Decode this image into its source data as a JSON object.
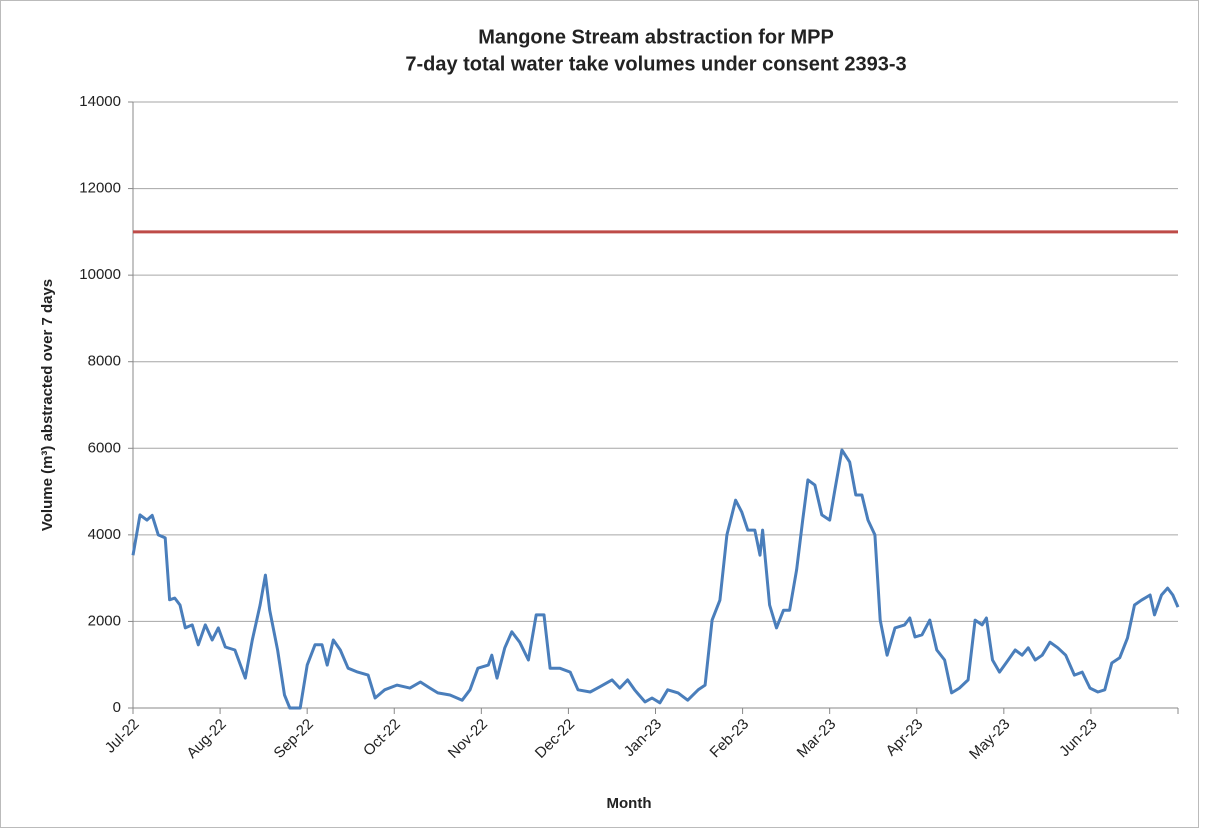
{
  "chart_data": {
    "type": "line",
    "title": "Mangone Stream abstraction for MPP",
    "subtitle": "7-day total water take volumes under consent 2393-3",
    "x_label": "Month",
    "y_label": "Volume (m³) abstracted over 7 days",
    "xlim": [
      0,
      12
    ],
    "xticks": [
      {
        "value": 0,
        "label": "Jul-22"
      },
      {
        "value": 1,
        "label": "Aug-22"
      },
      {
        "value": 2,
        "label": "Sep-22"
      },
      {
        "value": 3,
        "label": "Oct-22"
      },
      {
        "value": 4,
        "label": "Nov-22"
      },
      {
        "value": 5,
        "label": "Dec-22"
      },
      {
        "value": 6,
        "label": "Jan-23"
      },
      {
        "value": 7,
        "label": "Feb-23"
      },
      {
        "value": 8,
        "label": "Mar-23"
      },
      {
        "value": 9,
        "label": "Apr-23"
      },
      {
        "value": 10,
        "label": "May-23"
      },
      {
        "value": 11,
        "label": "Jun-23"
      }
    ],
    "ylim": [
      0,
      14000
    ],
    "yticks": [
      0,
      2000,
      4000,
      6000,
      8000,
      10000,
      12000,
      14000
    ],
    "grid": true,
    "series": [
      {
        "color": "#4a7ebb",
        "x": [
          0,
          0.08,
          0.16,
          0.22,
          0.29,
          0.37,
          0.42,
          0.48,
          0.54,
          0.6,
          0.68,
          0.75,
          0.83,
          0.91,
          0.98,
          1.06,
          1.17,
          1.29,
          1.37,
          1.46,
          1.52,
          1.57,
          1.66,
          1.74,
          1.8,
          1.92,
          2,
          2.09,
          2.17,
          2.23,
          2.3,
          2.38,
          2.47,
          2.58,
          2.7,
          2.78,
          2.89,
          3.03,
          3.18,
          3.3,
          3.41,
          3.5,
          3.64,
          3.78,
          3.87,
          3.96,
          4.08,
          4.12,
          4.18,
          4.27,
          4.35,
          4.44,
          4.54,
          4.63,
          4.72,
          4.79,
          4.9,
          5.02,
          5.11,
          5.25,
          5.36,
          5.5,
          5.59,
          5.68,
          5.76,
          5.88,
          5.96,
          6.05,
          6.14,
          6.26,
          6.37,
          6.49,
          6.57,
          6.65,
          6.74,
          6.82,
          6.92,
          6.99,
          7.06,
          7.14,
          7.2,
          7.23,
          7.31,
          7.39,
          7.47,
          7.54,
          7.62,
          7.69,
          7.75,
          7.83,
          7.91,
          8,
          8.06,
          8.14,
          8.23,
          8.3,
          8.37,
          8.44,
          8.52,
          8.58,
          8.66,
          8.75,
          8.86,
          8.92,
          8.98,
          9.06,
          9.15,
          9.23,
          9.32,
          9.4,
          9.49,
          9.59,
          9.67,
          9.75,
          9.8,
          9.87,
          9.95,
          10.05,
          10.13,
          10.21,
          10.28,
          10.36,
          10.44,
          10.53,
          10.62,
          10.71,
          10.81,
          10.9,
          10.99,
          11.08,
          11.16,
          11.24,
          11.33,
          11.42,
          11.5,
          11.58,
          11.68,
          11.73,
          11.81,
          11.88,
          11.94,
          12
        ],
        "values": [
          3530,
          4460,
          4340,
          4450,
          4000,
          3930,
          2500,
          2540,
          2380,
          1850,
          1920,
          1460,
          1920,
          1570,
          1850,
          1410,
          1340,
          690,
          1570,
          2380,
          3070,
          2260,
          1340,
          300,
          0,
          0,
          990,
          1460,
          1460,
          990,
          1570,
          1340,
          920,
          830,
          760,
          230,
          420,
          530,
          460,
          600,
          460,
          350,
          300,
          180,
          420,
          920,
          990,
          1220,
          690,
          1390,
          1760,
          1520,
          1110,
          2150,
          2150,
          920,
          920,
          830,
          420,
          370,
          490,
          650,
          460,
          650,
          420,
          140,
          230,
          120,
          420,
          350,
          180,
          420,
          530,
          2030,
          2490,
          4000,
          4800,
          4530,
          4110,
          4110,
          3530,
          4110,
          2380,
          1850,
          2260,
          2260,
          3190,
          4340,
          5270,
          5150,
          4460,
          4340,
          5040,
          5960,
          5680,
          4920,
          4920,
          4340,
          4000,
          2030,
          1220,
          1850,
          1920,
          2080,
          1640,
          1690,
          2030,
          1340,
          1110,
          350,
          460,
          650,
          2030,
          1920,
          2080,
          1110,
          830,
          1110,
          1340,
          1220,
          1390,
          1110,
          1220,
          1520,
          1390,
          1220,
          760,
          830,
          460,
          370,
          420,
          1040,
          1160,
          1620,
          2380,
          2490,
          2610,
          2150,
          2610,
          2770,
          2610,
          2330
        ]
      },
      {
        "color": "#be4b48",
        "x": [
          0,
          12
        ],
        "values": [
          11000,
          11000
        ]
      }
    ]
  }
}
